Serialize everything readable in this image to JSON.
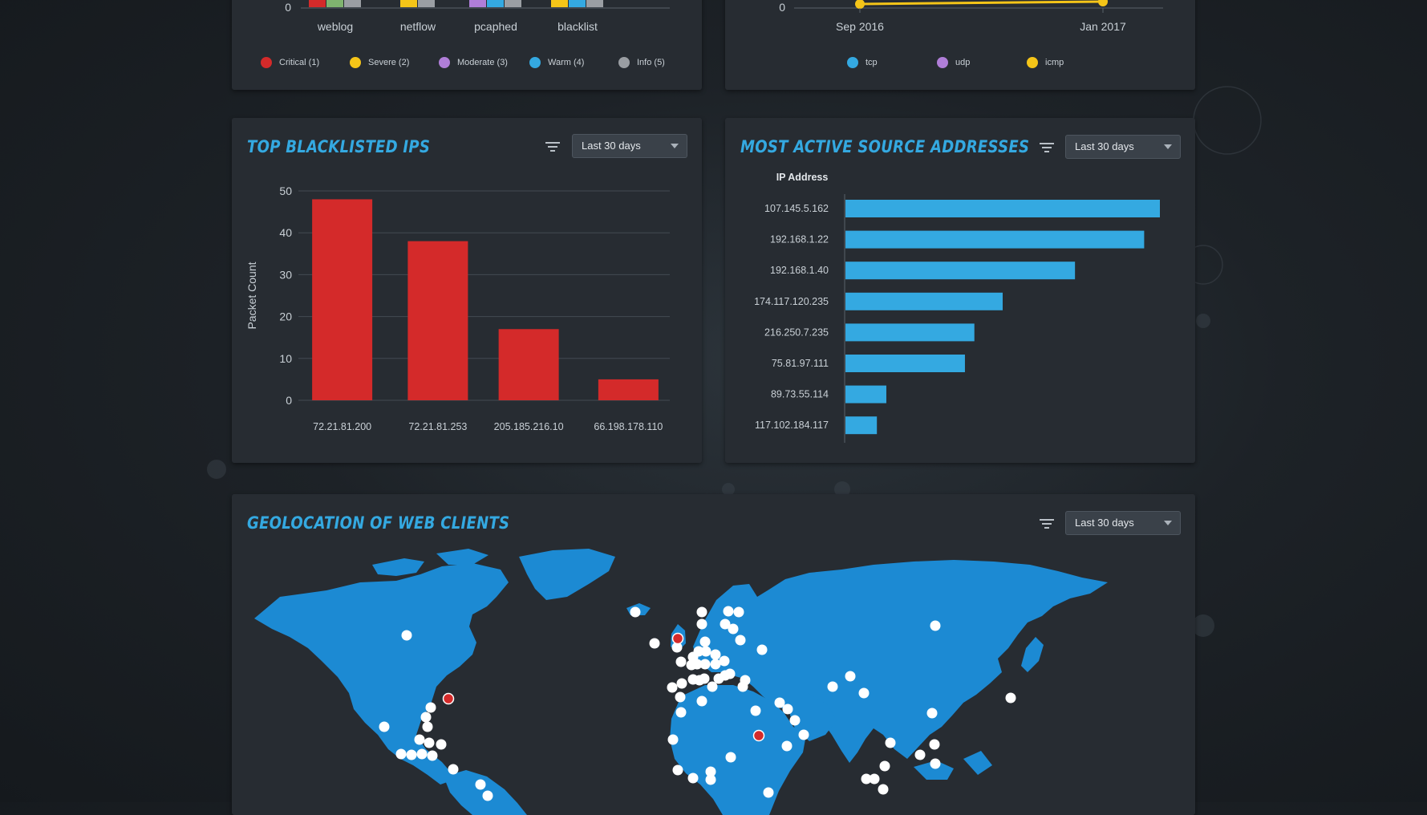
{
  "top_left_panel": {
    "zero_label": "0",
    "groups": [
      {
        "label": "weblog",
        "colors": [
          "#d42a2a",
          "#7fb36f",
          "#9a9ea3"
        ]
      },
      {
        "label": "netflow",
        "colors": [
          "#f5c518",
          "#9a9ea3"
        ]
      },
      {
        "label": "pcaphed",
        "colors": [
          "#b07ed8",
          "#34a9e1",
          "#9a9ea3"
        ]
      },
      {
        "label": "blacklist",
        "colors": [
          "#f5c518",
          "#34a9e1",
          "#9a9ea3"
        ]
      }
    ],
    "legend": [
      {
        "label": "Critical (1)",
        "color": "#d42a2a"
      },
      {
        "label": "Severe (2)",
        "color": "#f5c518"
      },
      {
        "label": "Moderate (3)",
        "color": "#b07ed8"
      },
      {
        "label": "Warm (4)",
        "color": "#34a9e1"
      },
      {
        "label": "Info (5)",
        "color": "#9a9ea3"
      }
    ]
  },
  "top_right_panel": {
    "zero_label": "0",
    "x_labels": [
      "Sep 2016",
      "Jan 2017"
    ],
    "line_color": "#f5c518",
    "legend": [
      {
        "label": "tcp",
        "color": "#34a9e1"
      },
      {
        "label": "udp",
        "color": "#b07ed8"
      },
      {
        "label": "icmp",
        "color": "#f5c518"
      }
    ]
  },
  "blacklisted_panel": {
    "title": "TOP BLACKLISTED IPS",
    "dropdown_value": "Last 30 days"
  },
  "active_sources_panel": {
    "title": "MOST ACTIVE SOURCE ADDRESSES",
    "dropdown_value": "Last 30 days"
  },
  "geo_panel": {
    "title": "GEOLOCATION OF WEB CLIENTS",
    "dropdown_value": "Last 30 days",
    "land_color": "#1c8ad3",
    "dot_color": "#ffffff",
    "alert_dot_color": "#d42a2a"
  },
  "chart_data": [
    {
      "type": "bar",
      "title": "TOP BLACKLISTED IPS",
      "categories": [
        "72.21.81.200",
        "72.21.81.253",
        "205.185.216.10",
        "66.198.178.110"
      ],
      "values": [
        48,
        38,
        17,
        5
      ],
      "ylabel": "Packet Count",
      "xlabel": "",
      "ylim": [
        0,
        50
      ],
      "yticks": [
        0,
        10,
        20,
        30,
        40,
        50
      ],
      "grid": true,
      "color": "#d42a2a"
    },
    {
      "type": "bar",
      "orientation": "horizontal",
      "title": "MOST ACTIVE SOURCE ADDRESSES",
      "category_header": "IP Address",
      "categories": [
        "107.145.5.162",
        "192.168.1.22",
        "192.168.1.40",
        "174.117.120.235",
        "216.250.7.235",
        "75.81.97.111",
        "89.73.55.114",
        "117.102.184.117"
      ],
      "values": [
        100,
        95,
        73,
        50,
        41,
        38,
        13,
        10
      ],
      "grid": false,
      "color": "#34a9e1"
    }
  ]
}
